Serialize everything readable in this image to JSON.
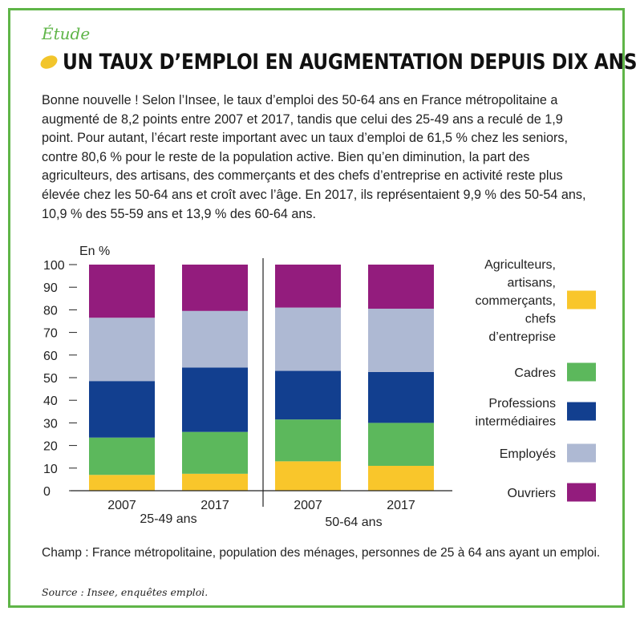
{
  "header": {
    "section": "Étude",
    "title": "UN TAUX D’EMPLOI EN AUGMENTATION DEPUIS DIX ANS"
  },
  "intro": {
    "text": "Bonne nouvelle ! Selon l’Insee, le taux d’emploi des 50-64 ans en France métropolitaine a augmenté de 8,2 points entre 2007 et 2017, tandis que celui des 25-49 ans a reculé de 1,9 point. Pour autant, l’écart reste important avec un taux d’emploi de 61,5 % chez les seniors, contre 80,6 % pour le reste de la population active. Bien qu’en diminution, la part des agriculteurs, des artisans, des commerçants et des chefs d’entreprise en activité reste plus élevée chez les 50-64 ans et croît avec l’âge. En 2017, ils représentaient 9,9 % des 50-54 ans, 10,9 % des 55-59 ans et 13,9 % des 60-64 ans."
  },
  "chart_data": {
    "type": "bar",
    "stacked": true,
    "ylabel": "En %",
    "ylim": [
      0,
      100
    ],
    "yticks": [
      0,
      10,
      20,
      30,
      40,
      50,
      60,
      70,
      80,
      90,
      100
    ],
    "grid": false,
    "legend_position": "right",
    "groups": [
      {
        "label": "25-49 ans",
        "categories": [
          "2007",
          "2017"
        ]
      },
      {
        "label": "50-64 ans",
        "categories": [
          "2007",
          "2017"
        ]
      }
    ],
    "categories": [
      "2007",
      "2017",
      "2007",
      "2017"
    ],
    "series": [
      {
        "name": "Agriculteurs, artisans, commerçants, chefs d’entreprise",
        "color": "#f9c62b",
        "values": [
          7.0,
          7.5,
          13.0,
          11.0
        ]
      },
      {
        "name": "Cadres",
        "color": "#5cb85c",
        "values": [
          16.5,
          18.5,
          18.5,
          19.0
        ]
      },
      {
        "name": "Professions intermédiaires",
        "color": "#123f8f",
        "values": [
          25.0,
          28.5,
          21.5,
          22.5
        ]
      },
      {
        "name": "Employés",
        "color": "#aeb9d3",
        "values": [
          28.0,
          25.0,
          28.0,
          28.0
        ]
      },
      {
        "name": "Ouvriers",
        "color": "#931c7d",
        "values": [
          23.5,
          20.5,
          19.0,
          19.5
        ]
      }
    ],
    "legend": [
      {
        "lines": [
          "Agriculteurs,",
          "artisans,",
          "commerçants,",
          "chefs",
          "d’entreprise"
        ],
        "color": "#f9c62b"
      },
      {
        "lines": [
          "Cadres"
        ],
        "color": "#5cb85c"
      },
      {
        "lines": [
          "Professions",
          "intermédiaires"
        ],
        "color": "#123f8f"
      },
      {
        "lines": [
          "Employés"
        ],
        "color": "#aeb9d3"
      },
      {
        "lines": [
          "Ouvriers"
        ],
        "color": "#931c7d"
      }
    ]
  },
  "footer": {
    "note": "Champ : France métropolitaine, population des ménages, personnes de 25 à 64 ans ayant un emploi.",
    "source": "Source : Insee, enquêtes emploi."
  },
  "colors": {
    "frame": "#5fb548",
    "bullet": "#f2c52b"
  }
}
